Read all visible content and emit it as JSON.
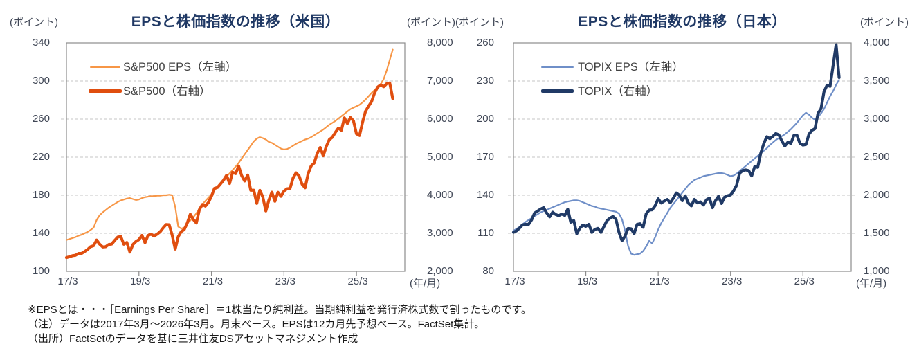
{
  "footnotes": [
    "※EPSとは・・・［Earnings Per Share］＝1株当たり純利益。当期純利益を発行済株式数で割ったものです。",
    "（注）データは2017年3月～2026年3月。月末ベース。EPSは12カ月先予想ベース。FactSet集計。",
    "（出所）FactSetのデータを基に三井住友DSアセットマネジメント作成"
  ],
  "chart_data": [
    {
      "id": "us",
      "type": "line",
      "title": "EPSと株価指数の推移（米国）",
      "unit_left": "(ポイント)",
      "unit_right": "(ポイント)",
      "x_unit": "(年/月)",
      "x_start": "2017/3",
      "x_end": "2026/3",
      "frequency": "monthly",
      "x_tick_labels": [
        "17/3",
        "19/3",
        "21/3",
        "23/3",
        "25/3"
      ],
      "x_tick_months": [
        0,
        24,
        48,
        72,
        96
      ],
      "y_left": {
        "min": 100,
        "max": 340,
        "tick_labels": [
          "340",
          "300",
          "260",
          "220",
          "180",
          "140",
          "100"
        ]
      },
      "y_right": {
        "min": 2000,
        "max": 8000,
        "tick_labels": [
          "8,000",
          "7,000",
          "6,000",
          "5,000",
          "4,000",
          "3,000",
          "2,000"
        ]
      },
      "grid": "dashed-horizontal",
      "legend_position": "top-left-inside",
      "series": [
        {
          "key": "sp500-eps",
          "name": "S&P500 EPS（左軸）",
          "axis": "left",
          "color": "#F79646",
          "width": 2.2,
          "values": [
            133,
            134,
            135,
            136,
            137.5,
            138.5,
            140,
            141.5,
            143.5,
            146,
            154,
            159,
            162,
            164.5,
            167,
            169,
            171,
            173,
            174.5,
            175.5,
            176.5,
            177,
            176,
            175,
            175.5,
            177,
            178,
            178.5,
            179,
            179,
            179.5,
            179.5,
            180,
            180,
            180.5,
            180,
            168,
            147,
            145,
            146,
            150.5,
            153.5,
            157,
            161,
            166,
            170.5,
            174,
            177.5,
            181,
            185,
            189,
            192.5,
            196,
            199.5,
            203,
            206.5,
            210,
            214,
            218.5,
            223,
            227.5,
            232,
            236.5,
            239.5,
            241,
            240,
            238.5,
            236,
            235,
            233,
            231,
            229,
            228,
            228.5,
            230,
            232,
            234,
            235.5,
            237,
            238.5,
            239.5,
            241,
            243,
            245,
            247,
            249,
            251.5,
            254,
            256,
            258,
            260.5,
            263,
            265.5,
            268,
            270.5,
            272,
            273.5,
            275,
            277.5,
            280.5,
            284,
            287.5,
            290.5,
            293,
            296.5,
            302,
            311,
            322,
            333
          ]
        },
        {
          "key": "sp500-price",
          "name": "S&P500（右軸）",
          "axis": "right",
          "color": "#E04E0F",
          "width": 4.2,
          "values": [
            2363,
            2384,
            2412,
            2423,
            2470,
            2472,
            2519,
            2575,
            2648,
            2674,
            2824,
            2714,
            2641,
            2648,
            2705,
            2718,
            2816,
            2902,
            2914,
            2712,
            2760,
            2507,
            2704,
            2784,
            2834,
            2946,
            2752,
            2942,
            2980,
            2926,
            2977,
            3038,
            3141,
            3231,
            3226,
            2954,
            2585,
            2912,
            3044,
            3100,
            3271,
            3500,
            3363,
            3270,
            3622,
            3756,
            3714,
            3811,
            3973,
            4181,
            4204,
            4298,
            4395,
            4523,
            4308,
            4605,
            4567,
            4766,
            4516,
            4374,
            4530,
            4132,
            4132,
            3785,
            4130,
            3955,
            3586,
            3872,
            4080,
            3840,
            4077,
            3970,
            4109,
            4169,
            4180,
            4450,
            4589,
            4508,
            4288,
            4194,
            4568,
            4770,
            4846,
            5096,
            5254,
            5036,
            5278,
            5460,
            5522,
            5648,
            5762,
            5705,
            6032,
            5882,
            6041,
            5955,
            5612,
            5569,
            5912,
            6205,
            6339,
            6460,
            6688,
            6840,
            6900,
            6850,
            6930,
            6950,
            6540
          ]
        }
      ]
    },
    {
      "id": "japan",
      "type": "line",
      "title": "EPSと株価指数の推移（日本）",
      "unit_left": "(ポイント)",
      "unit_right": "(ポイント)",
      "x_unit": "(年/月)",
      "x_start": "2017/3",
      "x_end": "2026/3",
      "frequency": "monthly",
      "x_tick_labels": [
        "17/3",
        "19/3",
        "21/3",
        "23/3",
        "25/3"
      ],
      "x_tick_months": [
        0,
        24,
        48,
        72,
        96
      ],
      "y_left": {
        "min": 80,
        "max": 260,
        "tick_labels": [
          "260",
          "230",
          "200",
          "170",
          "140",
          "110",
          "80"
        ]
      },
      "y_right": {
        "min": 1000,
        "max": 4000,
        "tick_labels": [
          "4,000",
          "3,500",
          "3,000",
          "2,500",
          "2,000",
          "1,500",
          "1,000"
        ]
      },
      "grid": "dashed-horizontal",
      "legend_position": "top-left-inside",
      "series": [
        {
          "key": "topix-eps",
          "name": "TOPIX  EPS（左軸）",
          "axis": "left",
          "color": "#6F8FC8",
          "width": 2.2,
          "values": [
            112,
            113.5,
            115,
            117,
            119,
            120.5,
            122,
            123.5,
            125,
            126.5,
            127.5,
            128.5,
            129.5,
            130.5,
            131.5,
            132.5,
            133.5,
            134.5,
            135,
            135.5,
            136,
            136,
            135.5,
            134.5,
            133.5,
            132.5,
            131.5,
            131,
            130,
            129.5,
            129,
            128.5,
            128,
            127.5,
            127,
            125.5,
            121,
            112,
            100,
            94,
            93,
            93.5,
            94,
            96,
            99.5,
            104,
            102,
            107,
            113,
            118,
            122,
            126,
            130,
            133,
            136,
            139,
            142,
            145,
            148,
            150,
            152,
            153,
            154,
            155,
            155.5,
            156,
            156.5,
            157,
            157.5,
            157.5,
            157,
            156,
            155,
            155.5,
            157,
            159,
            161,
            163,
            165,
            167,
            169,
            171,
            173,
            175,
            177,
            179.5,
            181.5,
            183.5,
            185,
            186.5,
            188,
            190,
            192,
            194.5,
            197,
            200,
            203,
            205,
            203.5,
            201,
            199.5,
            201.5,
            204.5,
            208,
            213,
            218,
            222,
            227,
            231
          ]
        },
        {
          "key": "topix-price",
          "name": "TOPIX（右軸）",
          "axis": "right",
          "color": "#203A66",
          "width": 4.2,
          "values": [
            1513,
            1532,
            1568,
            1612,
            1619,
            1617,
            1675,
            1766,
            1792,
            1818,
            1837,
            1768,
            1716,
            1777,
            1747,
            1731,
            1753,
            1735,
            1817,
            1646,
            1667,
            1494,
            1567,
            1608,
            1592,
            1618,
            1512,
            1551,
            1565,
            1512,
            1588,
            1667,
            1699,
            1721,
            1684,
            1511,
            1403,
            1464,
            1564,
            1559,
            1496,
            1618,
            1625,
            1579,
            1755,
            1805,
            1809,
            1864,
            1954,
            1898,
            1923,
            1944,
            1901,
            1961,
            2030,
            2001,
            1928,
            1992,
            1896,
            1860,
            1946,
            1900,
            1913,
            1871,
            1940,
            1963,
            1836,
            1929,
            1986,
            1892,
            1975,
            1993,
            2004,
            2057,
            2131,
            2289,
            2323,
            2332,
            2323,
            2254,
            2375,
            2366,
            2551,
            2676,
            2769,
            2743,
            2772,
            2810,
            2794,
            2713,
            2646,
            2696,
            2681,
            2785,
            2789,
            2682,
            2659,
            2667,
            2802,
            2853,
            2874,
            3075,
            3138,
            3360,
            3445,
            3430,
            3700,
            3975,
            3545
          ]
        }
      ]
    }
  ]
}
